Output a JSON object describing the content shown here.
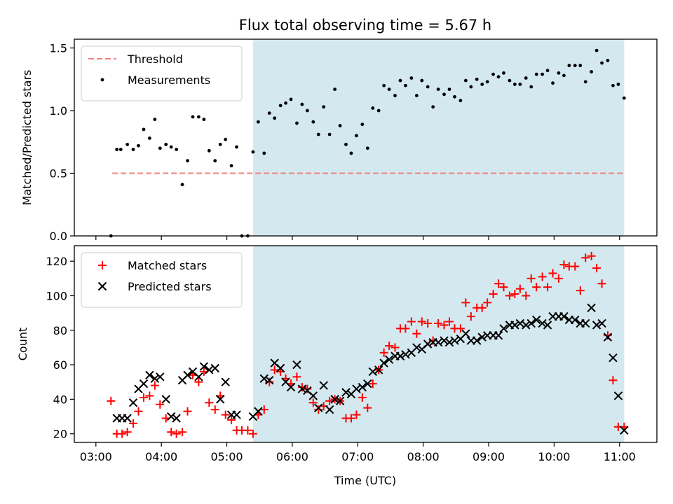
{
  "chart_data": {
    "title": "Flux total observing time = 5.67 h",
    "x_axis": {
      "label": "Time (UTC)",
      "tick_values": [
        3,
        4,
        5,
        6,
        7,
        8,
        9,
        10,
        11
      ],
      "tick_labels": [
        "03:00",
        "04:00",
        "05:00",
        "06:00",
        "07:00",
        "08:00",
        "09:00",
        "10:00",
        "11:00"
      ],
      "range": [
        2.67,
        11.57
      ],
      "unit": "hours UTC"
    },
    "shaded_interval": {
      "start": 5.4,
      "end": 11.07,
      "color": "#d3e9ef"
    },
    "panels": [
      {
        "type": "scatter",
        "ylabel": "Matched/Predicted stars",
        "ylim": [
          0,
          1.57
        ],
        "yticks": [
          0.0,
          0.5,
          1.0,
          1.5
        ],
        "ytick_labels": [
          "0.0",
          "0.5",
          "1.0",
          "1.5"
        ],
        "legend_position": "upper-left",
        "threshold": {
          "name": "Threshold",
          "value": 0.5,
          "x_range": [
            3.25,
            11.07
          ],
          "color": "#f08080"
        },
        "series": [
          {
            "name": "Measurements",
            "color": "#000000",
            "x": [
              3.23,
              3.32,
              3.38,
              3.48,
              3.57,
              3.65,
              3.73,
              3.82,
              3.9,
              3.98,
              4.07,
              4.15,
              4.23,
              4.32,
              4.4,
              4.48,
              4.57,
              4.65,
              4.73,
              4.82,
              4.9,
              4.98,
              5.07,
              5.15,
              5.23,
              5.32,
              5.4,
              5.48,
              5.57,
              5.65,
              5.73,
              5.82,
              5.9,
              5.98,
              6.07,
              6.15,
              6.23,
              6.32,
              6.4,
              6.48,
              6.57,
              6.65,
              6.73,
              6.82,
              6.9,
              6.98,
              7.07,
              7.15,
              7.23,
              7.32,
              7.4,
              7.48,
              7.57,
              7.65,
              7.73,
              7.82,
              7.9,
              7.98,
              8.07,
              8.15,
              8.23,
              8.32,
              8.4,
              8.48,
              8.57,
              8.65,
              8.73,
              8.82,
              8.9,
              8.98,
              9.07,
              9.15,
              9.23,
              9.32,
              9.4,
              9.48,
              9.57,
              9.65,
              9.73,
              9.82,
              9.9,
              9.98,
              10.07,
              10.15,
              10.23,
              10.32,
              10.4,
              10.48,
              10.57,
              10.65,
              10.73,
              10.82,
              10.9,
              10.98,
              11.07
            ],
            "y": [
              0.0,
              0.69,
              0.69,
              0.73,
              0.69,
              0.72,
              0.85,
              0.78,
              0.93,
              0.7,
              0.73,
              0.71,
              0.69,
              0.41,
              0.6,
              0.95,
              0.95,
              0.93,
              0.68,
              0.6,
              0.73,
              0.77,
              0.56,
              0.71,
              0.0,
              0.0,
              0.67,
              0.91,
              0.66,
              0.98,
              0.94,
              1.04,
              1.06,
              1.09,
              0.9,
              1.05,
              1.0,
              0.91,
              0.81,
              1.03,
              0.81,
              1.17,
              0.88,
              0.73,
              0.66,
              0.8,
              0.89,
              0.7,
              1.02,
              1.0,
              1.2,
              1.17,
              1.12,
              1.24,
              1.2,
              1.26,
              1.12,
              1.24,
              1.19,
              1.03,
              1.17,
              1.13,
              1.17,
              1.11,
              1.08,
              1.24,
              1.19,
              1.25,
              1.21,
              1.23,
              1.29,
              1.27,
              1.3,
              1.24,
              1.21,
              1.21,
              1.26,
              1.19,
              1.29,
              1.29,
              1.32,
              1.22,
              1.3,
              1.28,
              1.36,
              1.36,
              1.36,
              1.23,
              1.31,
              1.48,
              1.38,
              1.4,
              1.2,
              1.21,
              1.1
            ]
          }
        ]
      },
      {
        "type": "scatter",
        "ylabel": "Count",
        "ylim": [
          15,
          129
        ],
        "yticks": [
          20,
          40,
          60,
          80,
          100,
          120
        ],
        "ytick_labels": [
          "20",
          "40",
          "60",
          "80",
          "100",
          "120"
        ],
        "legend_position": "upper-left",
        "series": [
          {
            "name": "Matched stars",
            "marker": "+",
            "color": "#ff0000",
            "x": [
              3.23,
              3.32,
              3.4,
              3.48,
              3.57,
              3.65,
              3.73,
              3.82,
              3.9,
              3.98,
              4.07,
              4.15,
              4.23,
              4.32,
              4.4,
              4.48,
              4.57,
              4.65,
              4.73,
              4.82,
              4.9,
              4.98,
              5.07,
              5.15,
              5.23,
              5.32,
              5.4,
              5.48,
              5.57,
              5.65,
              5.73,
              5.82,
              5.9,
              5.98,
              6.07,
              6.15,
              6.23,
              6.32,
              6.4,
              6.48,
              6.57,
              6.65,
              6.73,
              6.82,
              6.9,
              6.98,
              7.07,
              7.15,
              7.23,
              7.32,
              7.4,
              7.48,
              7.57,
              7.65,
              7.73,
              7.82,
              7.9,
              7.98,
              8.07,
              8.15,
              8.23,
              8.32,
              8.4,
              8.48,
              8.57,
              8.65,
              8.73,
              8.82,
              8.9,
              8.98,
              9.07,
              9.15,
              9.23,
              9.32,
              9.4,
              9.48,
              9.57,
              9.65,
              9.73,
              9.82,
              9.9,
              9.98,
              10.07,
              10.15,
              10.23,
              10.32,
              10.4,
              10.48,
              10.57,
              10.65,
              10.73,
              10.82,
              10.9,
              10.98,
              11.07
            ],
            "y": [
              39,
              20,
              20,
              21,
              26,
              33,
              41,
              42,
              48,
              37,
              29,
              21,
              20,
              21,
              33,
              54,
              50,
              56,
              38,
              34,
              42,
              31,
              28,
              22,
              22,
              22,
              20,
              31,
              34,
              50,
              57,
              56,
              52,
              49,
              53,
              47,
              46,
              38,
              34,
              36,
              39,
              40,
              39,
              29,
              29,
              31,
              41,
              35,
              49,
              57,
              67,
              71,
              70,
              81,
              81,
              85,
              78,
              85,
              84,
              74,
              84,
              83,
              85,
              81,
              81,
              96,
              88,
              93,
              93,
              96,
              101,
              107,
              105,
              100,
              101,
              104,
              100,
              110,
              105,
              111,
              105,
              113,
              110,
              118,
              117,
              117,
              103,
              122,
              123,
              116,
              107,
              77,
              51,
              24,
              24
            ]
          },
          {
            "name": "Predicted stars",
            "marker": "x",
            "color": "#000000",
            "x": [
              3.32,
              3.4,
              3.48,
              3.57,
              3.65,
              3.73,
              3.82,
              3.9,
              3.98,
              4.07,
              4.15,
              4.23,
              4.32,
              4.4,
              4.48,
              4.57,
              4.65,
              4.73,
              4.82,
              4.9,
              4.98,
              5.07,
              5.15,
              5.4,
              5.48,
              5.57,
              5.65,
              5.73,
              5.82,
              5.9,
              5.98,
              6.07,
              6.15,
              6.23,
              6.32,
              6.4,
              6.48,
              6.57,
              6.65,
              6.73,
              6.82,
              6.9,
              6.98,
              7.07,
              7.15,
              7.23,
              7.32,
              7.4,
              7.48,
              7.57,
              7.65,
              7.73,
              7.82,
              7.9,
              7.98,
              8.07,
              8.15,
              8.23,
              8.32,
              8.4,
              8.48,
              8.57,
              8.65,
              8.73,
              8.82,
              8.9,
              8.98,
              9.07,
              9.15,
              9.23,
              9.32,
              9.4,
              9.48,
              9.57,
              9.65,
              9.73,
              9.82,
              9.9,
              9.98,
              10.07,
              10.15,
              10.23,
              10.32,
              10.4,
              10.48,
              10.57,
              10.65,
              10.73,
              10.82,
              10.9,
              10.98,
              11.07
            ],
            "y": [
              29,
              29,
              29,
              38,
              46,
              49,
              54,
              52,
              53,
              40,
              30,
              29,
              51,
              54,
              56,
              53,
              59,
              57,
              58,
              40,
              50,
              31,
              31,
              30,
              33,
              52,
              51,
              61,
              58,
              50,
              47,
              60,
              46,
              45,
              42,
              35,
              48,
              34,
              40,
              39,
              44,
              43,
              46,
              47,
              49,
              56,
              57,
              61,
              63,
              65,
              65,
              66,
              67,
              70,
              69,
              72,
              73,
              73,
              74,
              73,
              74,
              75,
              78,
              74,
              74,
              76,
              77,
              77,
              77,
              81,
              83,
              83,
              84,
              83,
              84,
              86,
              84,
              83,
              88,
              88,
              88,
              86,
              86,
              84,
              84,
              93,
              83,
              84,
              76,
              64,
              42,
              22
            ]
          }
        ]
      }
    ]
  }
}
